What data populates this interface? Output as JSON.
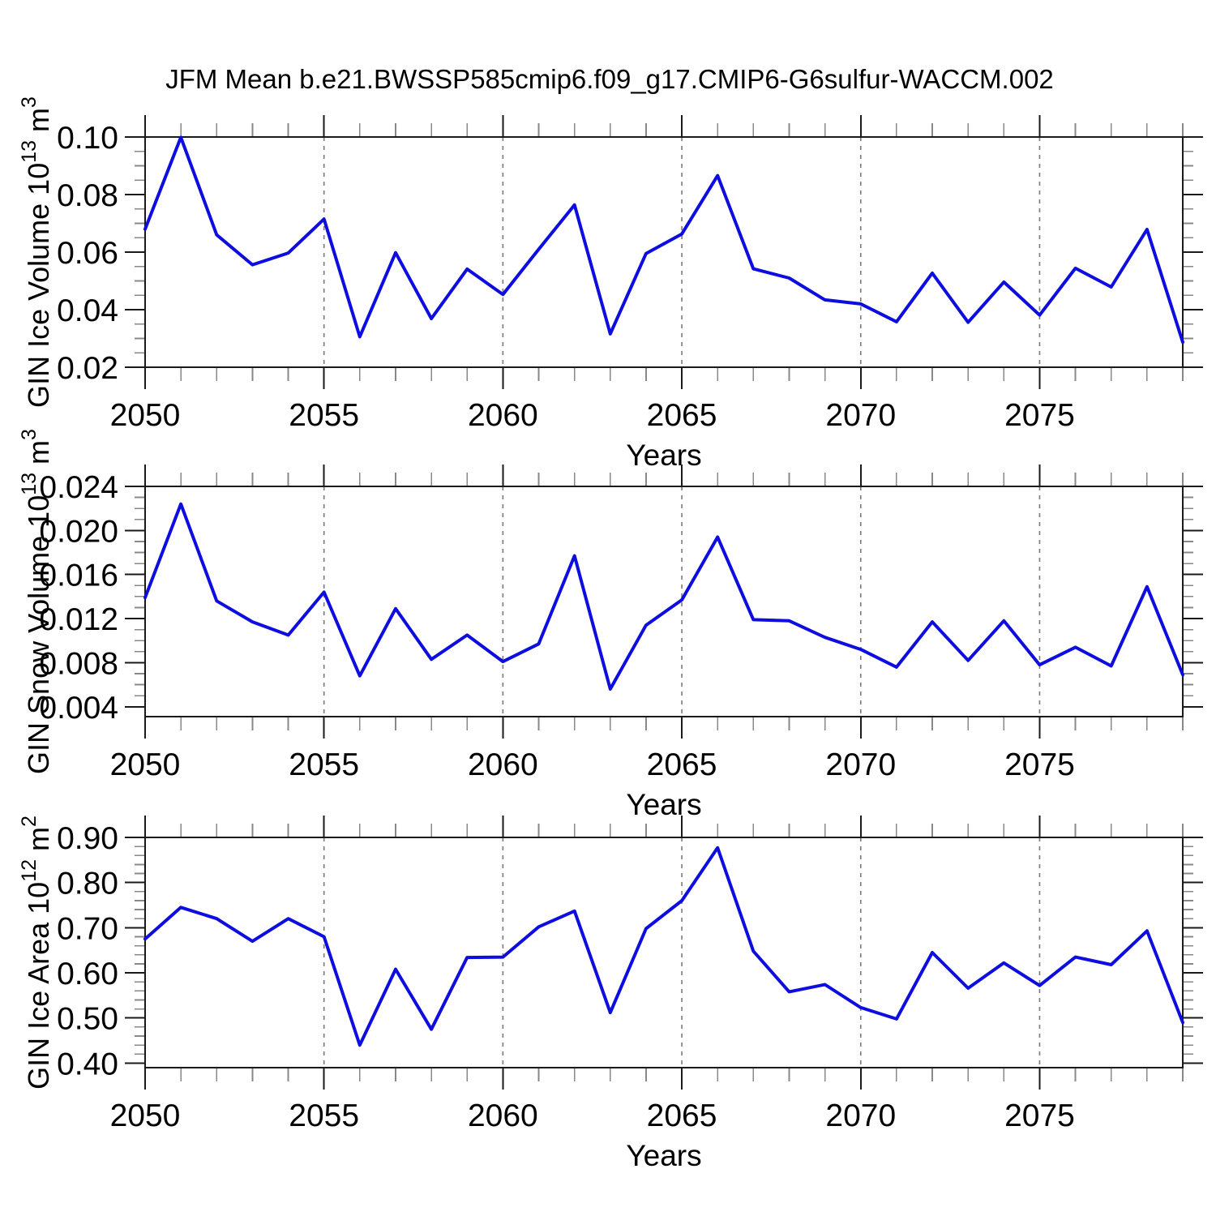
{
  "title": "JFM Mean b.e21.BWSSP585cmip6.f09_g17.CMIP6-G6sulfur-WACCM.002",
  "colors": {
    "line": "#0d0de0",
    "axis": "#1a1a1a",
    "minor_tick": "#888888",
    "grid_dash": "#7a7a7a",
    "text": "#000000",
    "background": "#ffffff"
  },
  "x_axis": {
    "label": "Years",
    "years": [
      2050,
      2051,
      2052,
      2053,
      2054,
      2055,
      2056,
      2057,
      2058,
      2059,
      2060,
      2061,
      2062,
      2063,
      2064,
      2065,
      2066,
      2067,
      2068,
      2069,
      2070,
      2071,
      2072,
      2073,
      2074,
      2075,
      2076,
      2077,
      2078,
      2079
    ],
    "major_ticks": [
      2050,
      2055,
      2060,
      2065,
      2070,
      2075
    ],
    "major_tick_labels": [
      "2050",
      "2055",
      "2060",
      "2065",
      "2070",
      "2075"
    ],
    "grid_years": [
      2055,
      2060,
      2065,
      2070,
      2075
    ]
  },
  "chart_data": [
    {
      "id": "gin-ice-volume",
      "type": "line",
      "ylabel_text": "GIN Ice Volume 10^13 m^3",
      "ylabel_parts": [
        {
          "t": "GIN Ice Volume 10"
        },
        {
          "t": "13",
          "sup": true
        },
        {
          "t": " m"
        },
        {
          "t": "3",
          "sup": true
        }
      ],
      "xlabel": "Years",
      "ylim": [
        0.02,
        0.1
      ],
      "ytick_values": [
        0.02,
        0.04,
        0.06,
        0.08,
        0.1
      ],
      "ytick_labels": [
        "0.02",
        "0.04",
        "0.06",
        "0.08",
        "0.10"
      ],
      "yminor_step": 0.005,
      "grid": "x-dashed",
      "legend": "none",
      "values": [
        0.068,
        0.0999,
        0.066,
        0.0556,
        0.0597,
        0.0715,
        0.0306,
        0.0598,
        0.0369,
        0.0541,
        0.0453,
        0.061,
        0.0764,
        0.0316,
        0.0595,
        0.0663,
        0.0866,
        0.0542,
        0.051,
        0.0434,
        0.042,
        0.0358,
        0.0527,
        0.0356,
        0.0496,
        0.0381,
        0.0544,
        0.0479,
        0.0679,
        0.0287
      ]
    },
    {
      "id": "gin-snow-volume",
      "type": "line",
      "ylabel_text": "GIN Snow Volume 10^13 m^3",
      "ylabel_parts": [
        {
          "t": "GIN Snow Volume 10"
        },
        {
          "t": "13",
          "sup": true
        },
        {
          "t": " m"
        },
        {
          "t": "3",
          "sup": true
        }
      ],
      "xlabel": "Years",
      "ylim": [
        0.0031,
        0.024
      ],
      "ytick_values": [
        0.004,
        0.008,
        0.012,
        0.016,
        0.02,
        0.024
      ],
      "ytick_labels": [
        "0.004",
        "0.008",
        "0.012",
        "0.016",
        "0.020",
        "0.024"
      ],
      "yminor_step": 0.001,
      "grid": "x-dashed",
      "legend": "none",
      "values": [
        0.0139,
        0.0224,
        0.0136,
        0.0117,
        0.0105,
        0.0144,
        0.0068,
        0.0129,
        0.0083,
        0.0105,
        0.0081,
        0.0097,
        0.0177,
        0.0056,
        0.0114,
        0.0137,
        0.0194,
        0.0119,
        0.0118,
        0.0103,
        0.0092,
        0.0076,
        0.0117,
        0.0082,
        0.0118,
        0.0078,
        0.0094,
        0.0077,
        0.0149,
        0.0069
      ]
    },
    {
      "id": "gin-ice-area",
      "type": "line",
      "ylabel_text": "GIN Ice Area 10^12 m^2",
      "ylabel_parts": [
        {
          "t": "GIN Ice Area 10"
        },
        {
          "t": "12",
          "sup": true
        },
        {
          "t": " m"
        },
        {
          "t": "2",
          "sup": true
        }
      ],
      "xlabel": "Years",
      "ylim": [
        0.39,
        0.9
      ],
      "ytick_values": [
        0.4,
        0.5,
        0.6,
        0.7,
        0.8,
        0.9
      ],
      "ytick_labels": [
        "0.40",
        "0.50",
        "0.60",
        "0.70",
        "0.80",
        "0.90"
      ],
      "yminor_step": 0.02,
      "grid": "x-dashed",
      "legend": "none",
      "values": [
        0.675,
        0.745,
        0.72,
        0.67,
        0.72,
        0.68,
        0.44,
        0.608,
        0.475,
        0.634,
        0.635,
        0.702,
        0.737,
        0.512,
        0.698,
        0.76,
        0.877,
        0.648,
        0.558,
        0.574,
        0.523,
        0.498,
        0.645,
        0.566,
        0.622,
        0.572,
        0.635,
        0.618,
        0.693,
        0.49
      ]
    }
  ]
}
